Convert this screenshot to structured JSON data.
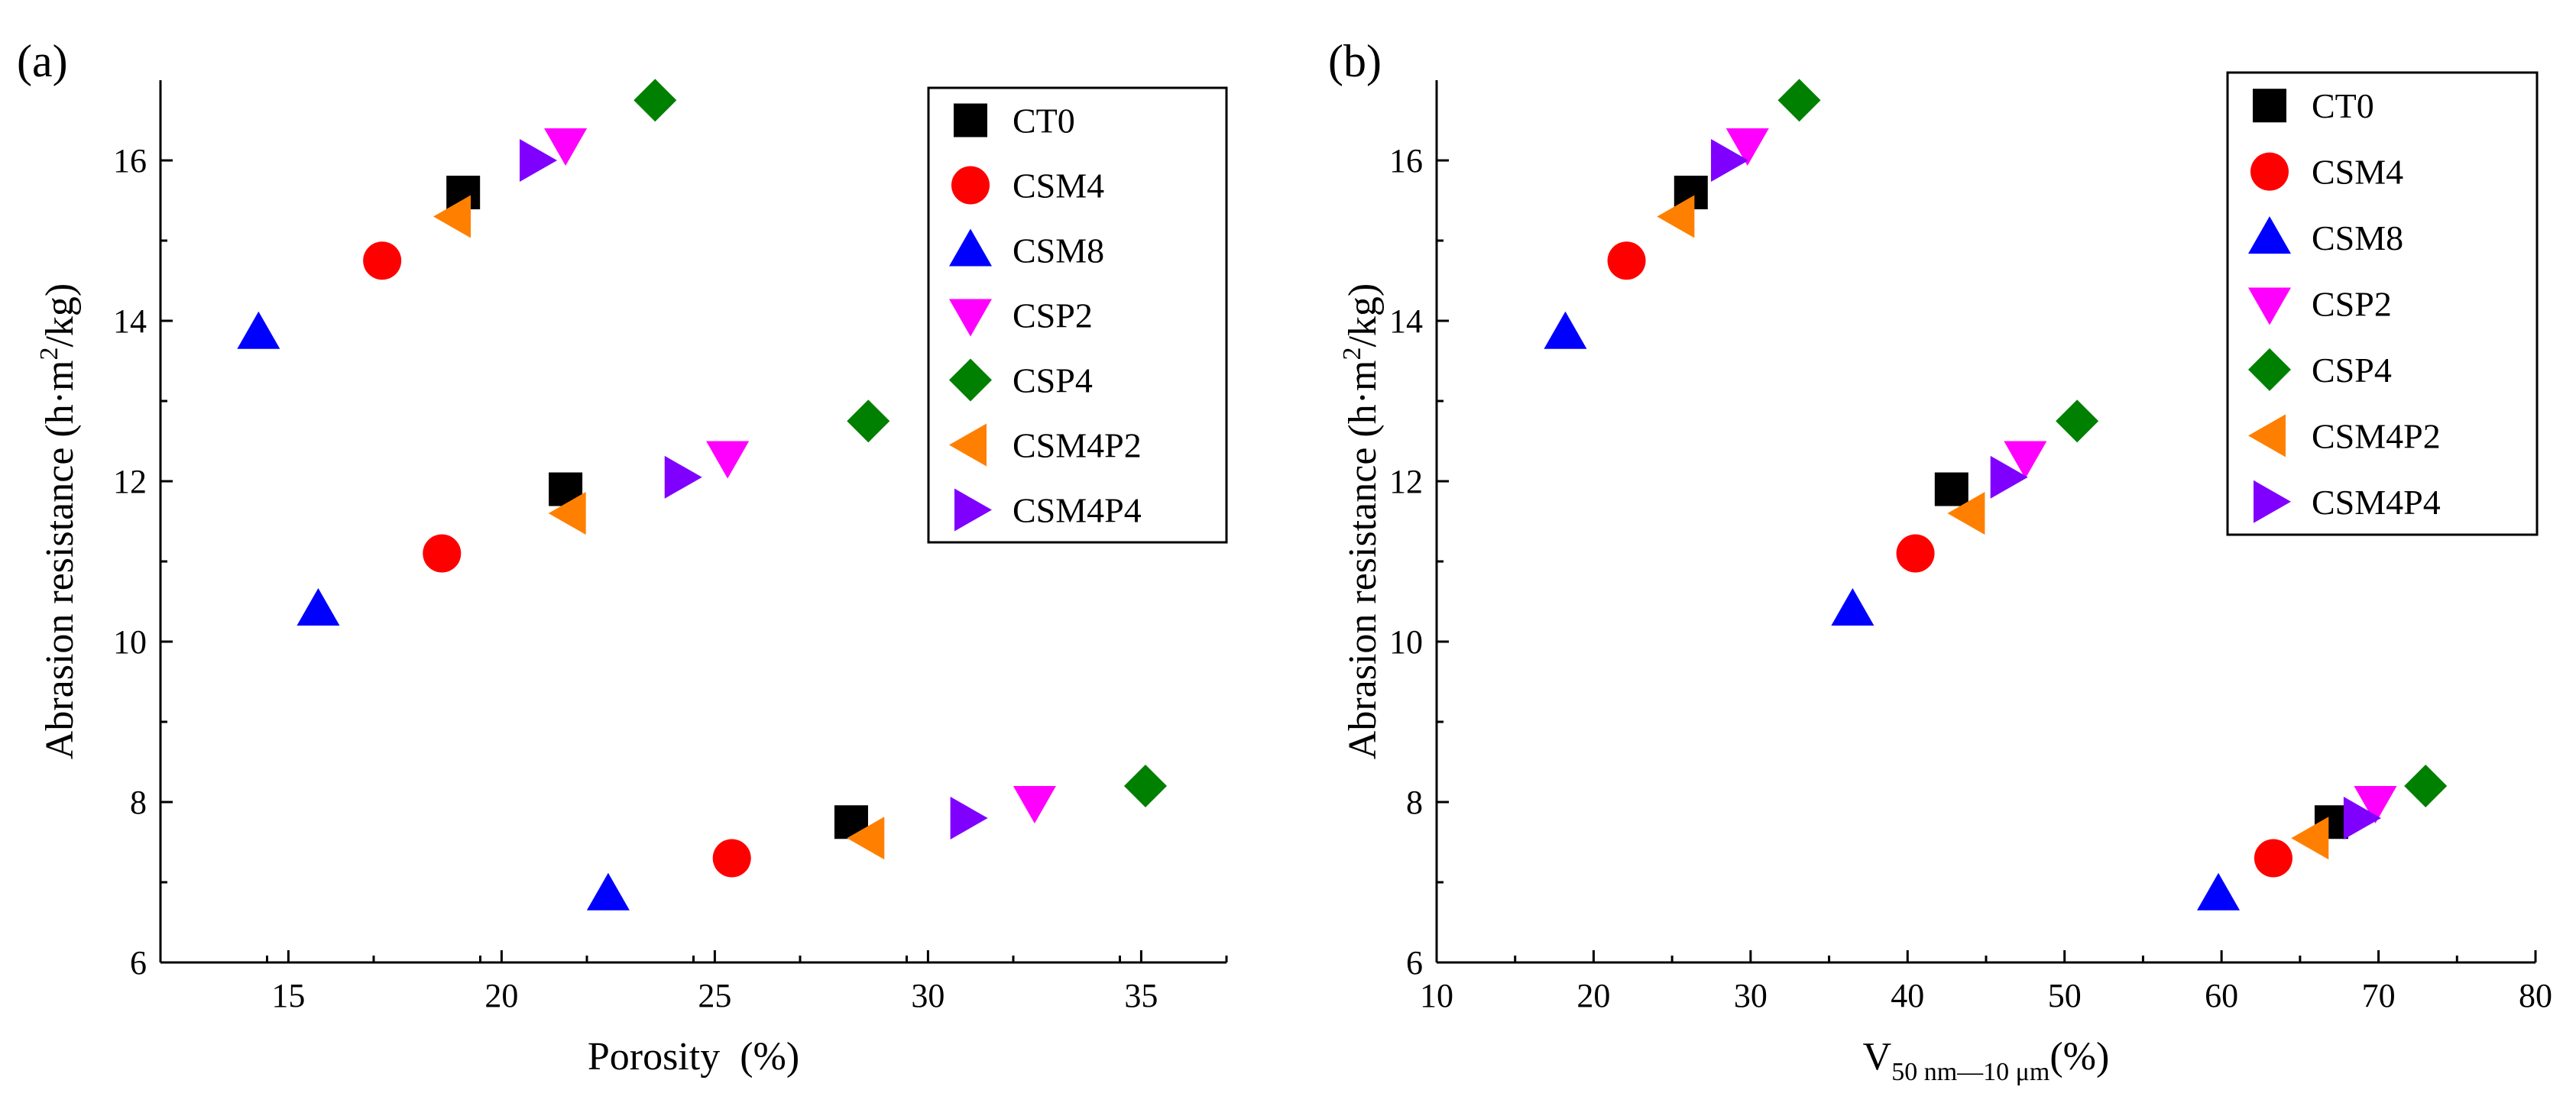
{
  "chart_data": [
    {
      "type": "scatter",
      "panel_label": "(a)",
      "xlabel": "Porosity  (%)",
      "ylabel_parts": [
        "Abrasion resistance (h·m",
        "2",
        "/kg)"
      ],
      "xlim": [
        12,
        37
      ],
      "ylim": [
        6,
        17
      ],
      "xticks": [
        15,
        20,
        25,
        30,
        35
      ],
      "yticks": [
        6,
        8,
        10,
        12,
        14,
        16
      ],
      "legend_position": "top-right",
      "series": [
        {
          "name": "CT0",
          "marker": "square",
          "color": "#000000",
          "x": [
            19.1,
            21.5,
            28.2
          ],
          "y": [
            15.6,
            11.9,
            7.75
          ]
        },
        {
          "name": "CSM4",
          "marker": "circle",
          "color": "#ff0000",
          "x": [
            17.2,
            18.6,
            25.4
          ],
          "y": [
            14.75,
            11.1,
            7.3
          ]
        },
        {
          "name": "CSM8",
          "marker": "triangle-up",
          "color": "#0000ff",
          "x": [
            14.3,
            15.7,
            22.5
          ],
          "y": [
            13.85,
            10.4,
            6.85
          ]
        },
        {
          "name": "CSP2",
          "marker": "triangle-down",
          "color": "#ff00ff",
          "x": [
            21.5,
            25.3,
            32.5
          ],
          "y": [
            16.2,
            12.3,
            8.0
          ]
        },
        {
          "name": "CSP4",
          "marker": "diamond",
          "color": "#008000",
          "x": [
            23.6,
            28.6,
            35.1
          ],
          "y": [
            16.75,
            12.75,
            8.2
          ]
        },
        {
          "name": "CSM4P2",
          "marker": "triangle-left",
          "color": "#ff8000",
          "x": [
            18.9,
            21.6,
            28.6
          ],
          "y": [
            15.3,
            11.6,
            7.55
          ]
        },
        {
          "name": "CSM4P4",
          "marker": "triangle-right",
          "color": "#8000ff",
          "x": [
            20.8,
            24.2,
            30.9
          ],
          "y": [
            16.0,
            12.05,
            7.8
          ]
        }
      ]
    },
    {
      "type": "scatter",
      "panel_label": "(b)",
      "xlabel_parts": [
        "V",
        "50 nm—10 μm",
        "(%)"
      ],
      "ylabel_parts": [
        "Abrasion resistance (h·m",
        "2",
        "/kg)"
      ],
      "xlim": [
        10,
        80
      ],
      "ylim": [
        6,
        17
      ],
      "xticks": [
        10,
        20,
        30,
        40,
        50,
        60,
        70,
        80
      ],
      "yticks": [
        6,
        8,
        10,
        12,
        14,
        16
      ],
      "legend_position": "top-right",
      "series": [
        {
          "name": "CT0",
          "marker": "square",
          "color": "#000000",
          "x": [
            26.2,
            42.8,
            67.0
          ],
          "y": [
            15.6,
            11.9,
            7.75
          ]
        },
        {
          "name": "CSM4",
          "marker": "circle",
          "color": "#ff0000",
          "x": [
            22.1,
            40.5,
            63.3
          ],
          "y": [
            14.75,
            11.1,
            7.3
          ]
        },
        {
          "name": "CSM8",
          "marker": "triangle-up",
          "color": "#0000ff",
          "x": [
            18.2,
            36.5,
            59.8
          ],
          "y": [
            13.85,
            10.4,
            6.85
          ]
        },
        {
          "name": "CSP2",
          "marker": "triangle-down",
          "color": "#ff00ff",
          "x": [
            29.8,
            47.5,
            69.8
          ],
          "y": [
            16.2,
            12.3,
            8.0
          ]
        },
        {
          "name": "CSP4",
          "marker": "diamond",
          "color": "#008000",
          "x": [
            33.1,
            50.8,
            73.0
          ],
          "y": [
            16.75,
            12.75,
            8.2
          ]
        },
        {
          "name": "CSM4P2",
          "marker": "triangle-left",
          "color": "#ff8000",
          "x": [
            25.4,
            43.9,
            65.8
          ],
          "y": [
            15.3,
            11.6,
            7.55
          ]
        },
        {
          "name": "CSM4P4",
          "marker": "triangle-right",
          "color": "#8000ff",
          "x": [
            28.5,
            46.3,
            68.8
          ],
          "y": [
            16.0,
            12.05,
            7.8
          ]
        }
      ]
    }
  ]
}
